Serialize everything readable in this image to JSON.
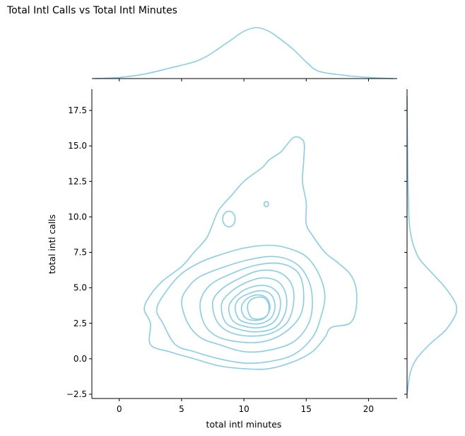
{
  "chart_data": {
    "type": "kde-jointplot",
    "title": "Total Intl Calls vs Total Intl Minutes",
    "xlabel": "total intl minutes",
    "ylabel": "total intl calls",
    "xlim": [
      -2.2,
      22.3
    ],
    "ylim": [
      -2.8,
      19.0
    ],
    "xticks": [
      "0",
      "5",
      "10",
      "15",
      "20"
    ],
    "yticks": [
      "−2.5",
      "0.0",
      "2.5",
      "5.0",
      "7.5",
      "10.0",
      "12.5",
      "15.0",
      "17.5"
    ],
    "color": "#87CEEB",
    "grid": false,
    "mode": {
      "x": 11.0,
      "y": 3.5
    },
    "x_marginal": {
      "x": [
        -2,
        0,
        2,
        4,
        6,
        7,
        8,
        9,
        10,
        11,
        12,
        13,
        14,
        15,
        16,
        18,
        20,
        22
      ],
      "density": [
        0.0,
        0.003,
        0.012,
        0.028,
        0.045,
        0.06,
        0.082,
        0.105,
        0.128,
        0.138,
        0.128,
        0.105,
        0.078,
        0.045,
        0.02,
        0.009,
        0.003,
        0.0
      ]
    },
    "y_marginal": {
      "y": [
        -2.5,
        -1.0,
        0.0,
        1.0,
        2.0,
        3.0,
        3.5,
        4.0,
        5.0,
        6.0,
        7.0,
        8.0,
        9.0,
        10.0,
        12.5,
        15.0,
        17.5,
        18.5
      ],
      "density": [
        0.0,
        0.02,
        0.06,
        0.14,
        0.24,
        0.3,
        0.31,
        0.3,
        0.24,
        0.16,
        0.08,
        0.04,
        0.02,
        0.012,
        0.006,
        0.003,
        0.001,
        0.0
      ]
    },
    "contour_levels": [
      {
        "level": 1,
        "points": [
          [
            2.0,
            3.5
          ],
          [
            2.5,
            2.5
          ],
          [
            2.5,
            1.0
          ],
          [
            4.0,
            0.5
          ],
          [
            6.0,
            0.0
          ],
          [
            8.0,
            -0.5
          ],
          [
            10.0,
            -0.7
          ],
          [
            12.0,
            -0.7
          ],
          [
            14.0,
            -0.2
          ],
          [
            15.5,
            0.5
          ],
          [
            16.5,
            1.5
          ],
          [
            17.0,
            2.2
          ],
          [
            18.5,
            2.5
          ],
          [
            19.0,
            3.5
          ],
          [
            19.0,
            5.0
          ],
          [
            18.5,
            6.0
          ],
          [
            17.5,
            6.8
          ],
          [
            16.5,
            7.5
          ],
          [
            15.5,
            8.7
          ],
          [
            15.0,
            9.5
          ],
          [
            15.0,
            11.0
          ],
          [
            14.7,
            12.5
          ],
          [
            14.8,
            14.0
          ],
          [
            14.8,
            15.3
          ],
          [
            14.0,
            15.6
          ],
          [
            13.0,
            14.6
          ],
          [
            12.0,
            14.0
          ],
          [
            11.5,
            13.5
          ],
          [
            10.0,
            12.5
          ],
          [
            9.0,
            11.5
          ],
          [
            8.0,
            10.5
          ],
          [
            7.5,
            9.5
          ],
          [
            7.0,
            8.5
          ],
          [
            6.0,
            7.5
          ],
          [
            5.0,
            6.5
          ],
          [
            3.5,
            5.5
          ],
          [
            2.5,
            4.5
          ]
        ]
      },
      {
        "level": 2,
        "points": [
          [
            3.0,
            3.5
          ],
          [
            3.5,
            2.5
          ],
          [
            4.5,
            1.0
          ],
          [
            6.0,
            0.5
          ],
          [
            8.0,
            0.0
          ],
          [
            10.0,
            -0.3
          ],
          [
            12.0,
            -0.2
          ],
          [
            14.0,
            0.3
          ],
          [
            15.5,
            1.5
          ],
          [
            16.2,
            3.0
          ],
          [
            16.5,
            4.5
          ],
          [
            16.0,
            6.0
          ],
          [
            15.0,
            7.2
          ],
          [
            13.5,
            7.8
          ],
          [
            12.0,
            8.0
          ],
          [
            10.0,
            7.8
          ],
          [
            8.0,
            7.3
          ],
          [
            6.5,
            6.8
          ],
          [
            5.0,
            6.0
          ],
          [
            3.8,
            4.8
          ]
        ]
      },
      {
        "level": 3,
        "points": [
          [
            5.0,
            4.0
          ],
          [
            5.5,
            2.5
          ],
          [
            6.5,
            1.5
          ],
          [
            8.0,
            1.0
          ],
          [
            10.0,
            0.5
          ],
          [
            12.0,
            0.6
          ],
          [
            14.0,
            1.2
          ],
          [
            15.2,
            2.5
          ],
          [
            15.5,
            4.0
          ],
          [
            15.2,
            5.5
          ],
          [
            14.2,
            6.7
          ],
          [
            12.5,
            7.2
          ],
          [
            10.5,
            7.0
          ],
          [
            8.5,
            6.5
          ],
          [
            6.5,
            5.8
          ],
          [
            5.5,
            5.0
          ]
        ]
      },
      {
        "level": 4,
        "points": [
          [
            6.5,
            4.0
          ],
          [
            6.8,
            2.5
          ],
          [
            7.8,
            1.6
          ],
          [
            9.5,
            1.2
          ],
          [
            11.5,
            1.2
          ],
          [
            13.2,
            1.8
          ],
          [
            14.5,
            3.0
          ],
          [
            14.8,
            4.5
          ],
          [
            14.4,
            6.0
          ],
          [
            13.0,
            6.7
          ],
          [
            11.0,
            6.6
          ],
          [
            9.0,
            6.0
          ],
          [
            7.3,
            5.2
          ]
        ]
      },
      {
        "level": 5,
        "points": [
          [
            7.5,
            4.0
          ],
          [
            7.8,
            2.7
          ],
          [
            8.8,
            1.9
          ],
          [
            10.5,
            1.6
          ],
          [
            12.2,
            1.8
          ],
          [
            13.5,
            2.6
          ],
          [
            14.0,
            4.0
          ],
          [
            13.8,
            5.3
          ],
          [
            12.8,
            6.1
          ],
          [
            11.2,
            6.2
          ],
          [
            9.5,
            5.6
          ],
          [
            8.2,
            4.9
          ]
        ]
      },
      {
        "level": 6,
        "points": [
          [
            8.2,
            3.8
          ],
          [
            8.5,
            2.6
          ],
          [
            9.5,
            2.1
          ],
          [
            11.0,
            1.9
          ],
          [
            12.5,
            2.2
          ],
          [
            13.3,
            3.2
          ],
          [
            13.4,
            4.4
          ],
          [
            12.8,
            5.4
          ],
          [
            11.5,
            5.7
          ],
          [
            10.0,
            5.3
          ],
          [
            8.8,
            4.6
          ]
        ]
      },
      {
        "level": 7,
        "points": [
          [
            8.8,
            3.7
          ],
          [
            9.1,
            2.7
          ],
          [
            10.0,
            2.3
          ],
          [
            11.3,
            2.2
          ],
          [
            12.4,
            2.6
          ],
          [
            12.9,
            3.5
          ],
          [
            12.8,
            4.5
          ],
          [
            12.0,
            5.1
          ],
          [
            10.8,
            5.1
          ],
          [
            9.6,
            4.6
          ]
        ]
      },
      {
        "level": 8,
        "points": [
          [
            9.3,
            3.6
          ],
          [
            9.6,
            2.8
          ],
          [
            10.4,
            2.5
          ],
          [
            11.4,
            2.5
          ],
          [
            12.2,
            2.9
          ],
          [
            12.5,
            3.7
          ],
          [
            12.2,
            4.5
          ],
          [
            11.4,
            4.8
          ],
          [
            10.4,
            4.6
          ],
          [
            9.6,
            4.2
          ]
        ]
      },
      {
        "level": 9,
        "points": [
          [
            9.8,
            3.6
          ],
          [
            10.1,
            2.9
          ],
          [
            10.9,
            2.7
          ],
          [
            11.7,
            2.9
          ],
          [
            12.1,
            3.6
          ],
          [
            11.8,
            4.3
          ],
          [
            11.0,
            4.5
          ],
          [
            10.2,
            4.2
          ]
        ]
      },
      {
        "level": 10,
        "points": [
          [
            10.3,
            3.5
          ],
          [
            10.6,
            2.9
          ],
          [
            11.3,
            2.8
          ],
          [
            11.9,
            3.1
          ],
          [
            12.0,
            3.8
          ],
          [
            11.6,
            4.3
          ],
          [
            10.9,
            4.3
          ],
          [
            10.4,
            4.0
          ]
        ]
      }
    ],
    "contour_islands": [
      {
        "cx": 8.8,
        "cy": 9.85,
        "rx": 0.5,
        "ry": 0.55
      },
      {
        "cx": 11.8,
        "cy": 10.9,
        "rx": 0.18,
        "ry": 0.18
      }
    ]
  }
}
